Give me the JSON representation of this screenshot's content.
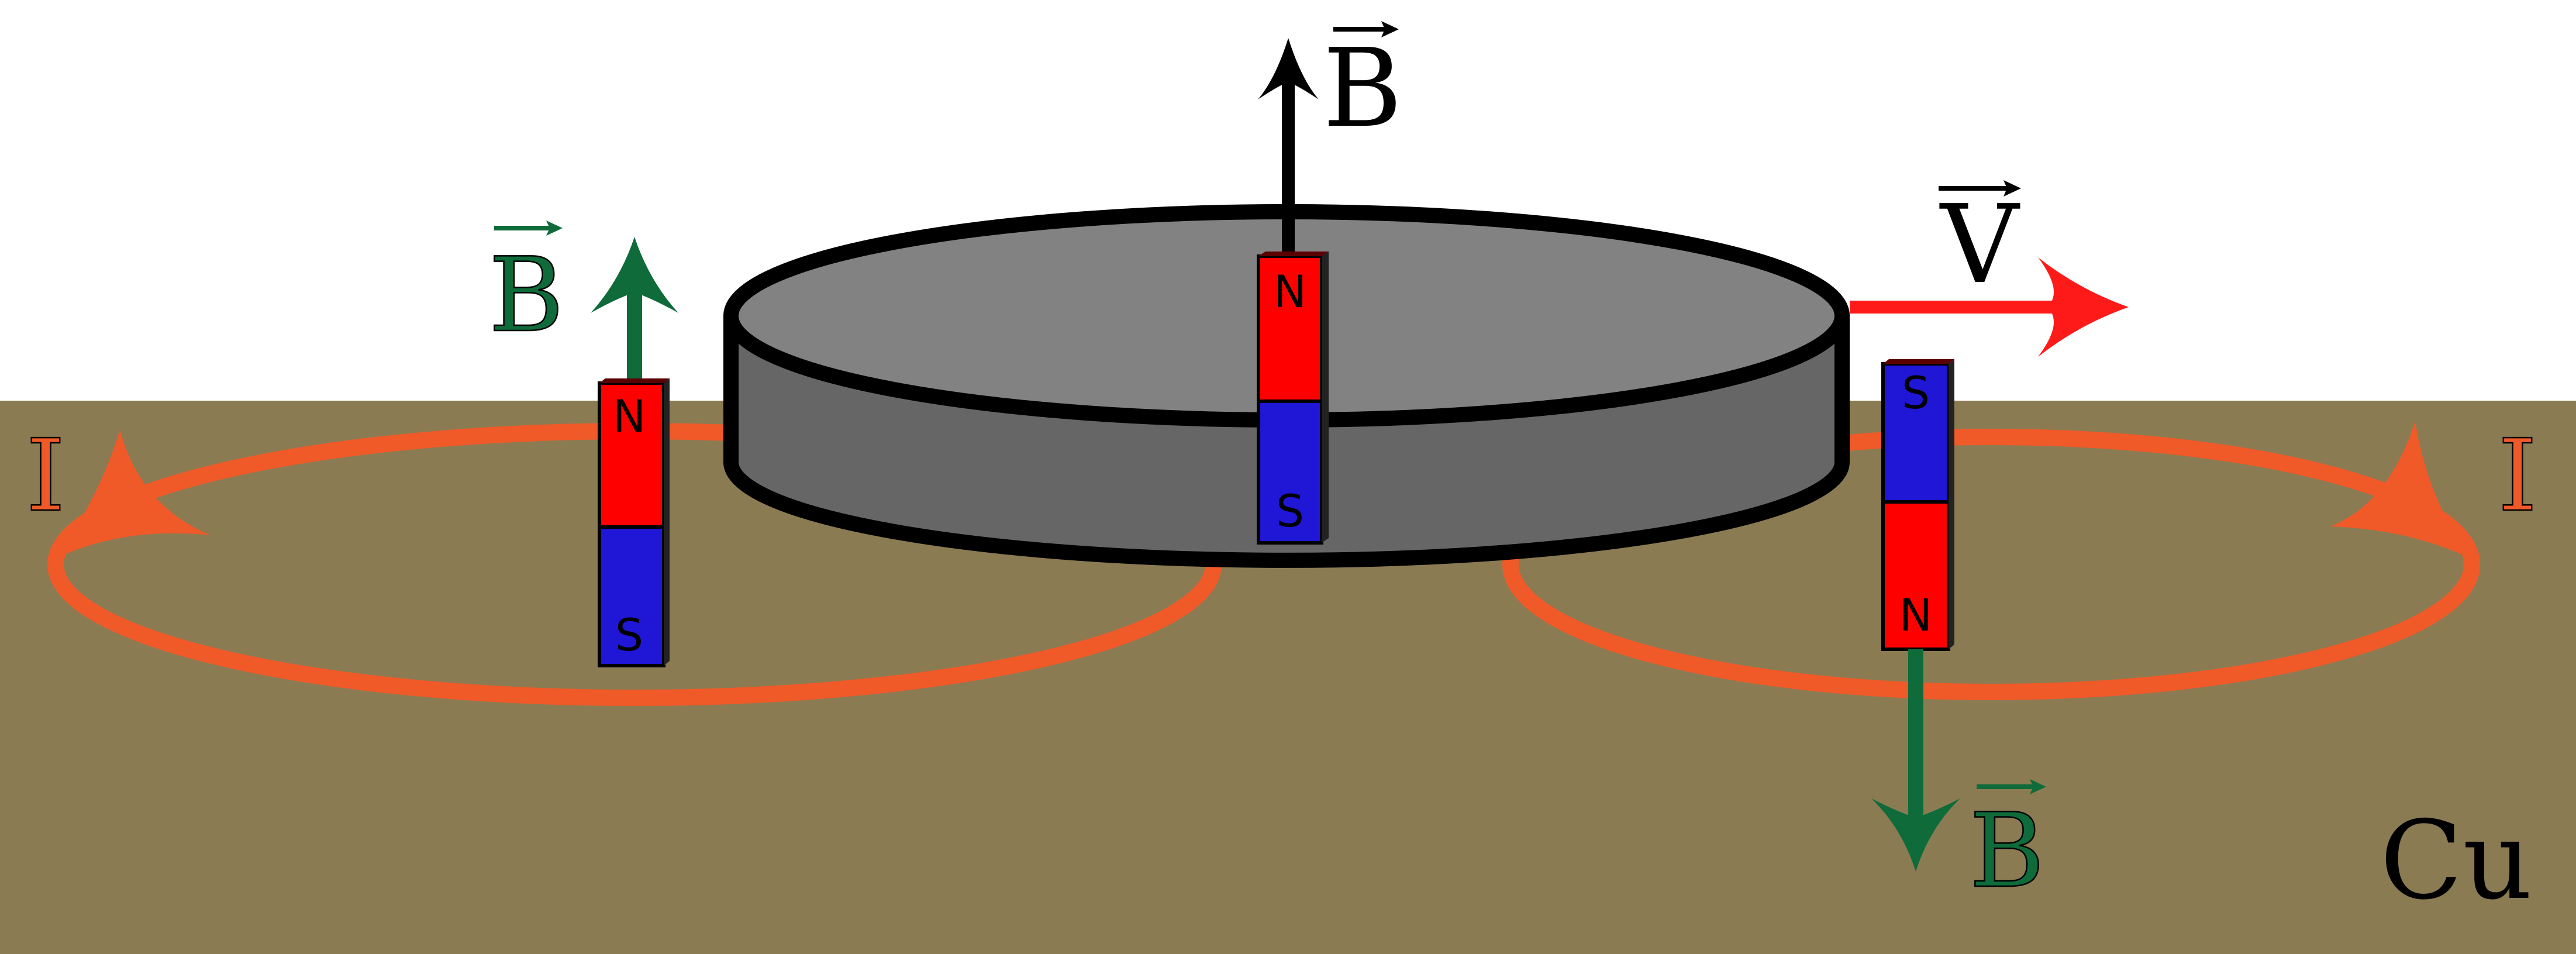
{
  "colors": {
    "background": "#ffffff",
    "copper": "#8b7b53",
    "current": "#f05a28",
    "field_small": "#0f6b3a",
    "field_main": "#000000",
    "velocity": "#ff1a1a",
    "magnet_north": "#ff0000",
    "magnet_south": "#1f16d6",
    "disc_top": "#828282",
    "disc_side": "#666666",
    "outline": "#000000"
  },
  "labels": {
    "field_main": "B",
    "field_left": "B",
    "field_right": "B",
    "velocity": "V",
    "current_left": "I",
    "current_right": "I",
    "material": "Cu"
  },
  "magnets": {
    "center": {
      "top_pole": "N",
      "bottom_pole": "S"
    },
    "left": {
      "top_pole": "N",
      "bottom_pole": "S"
    },
    "right": {
      "top_pole": "S",
      "bottom_pole": "N"
    }
  }
}
